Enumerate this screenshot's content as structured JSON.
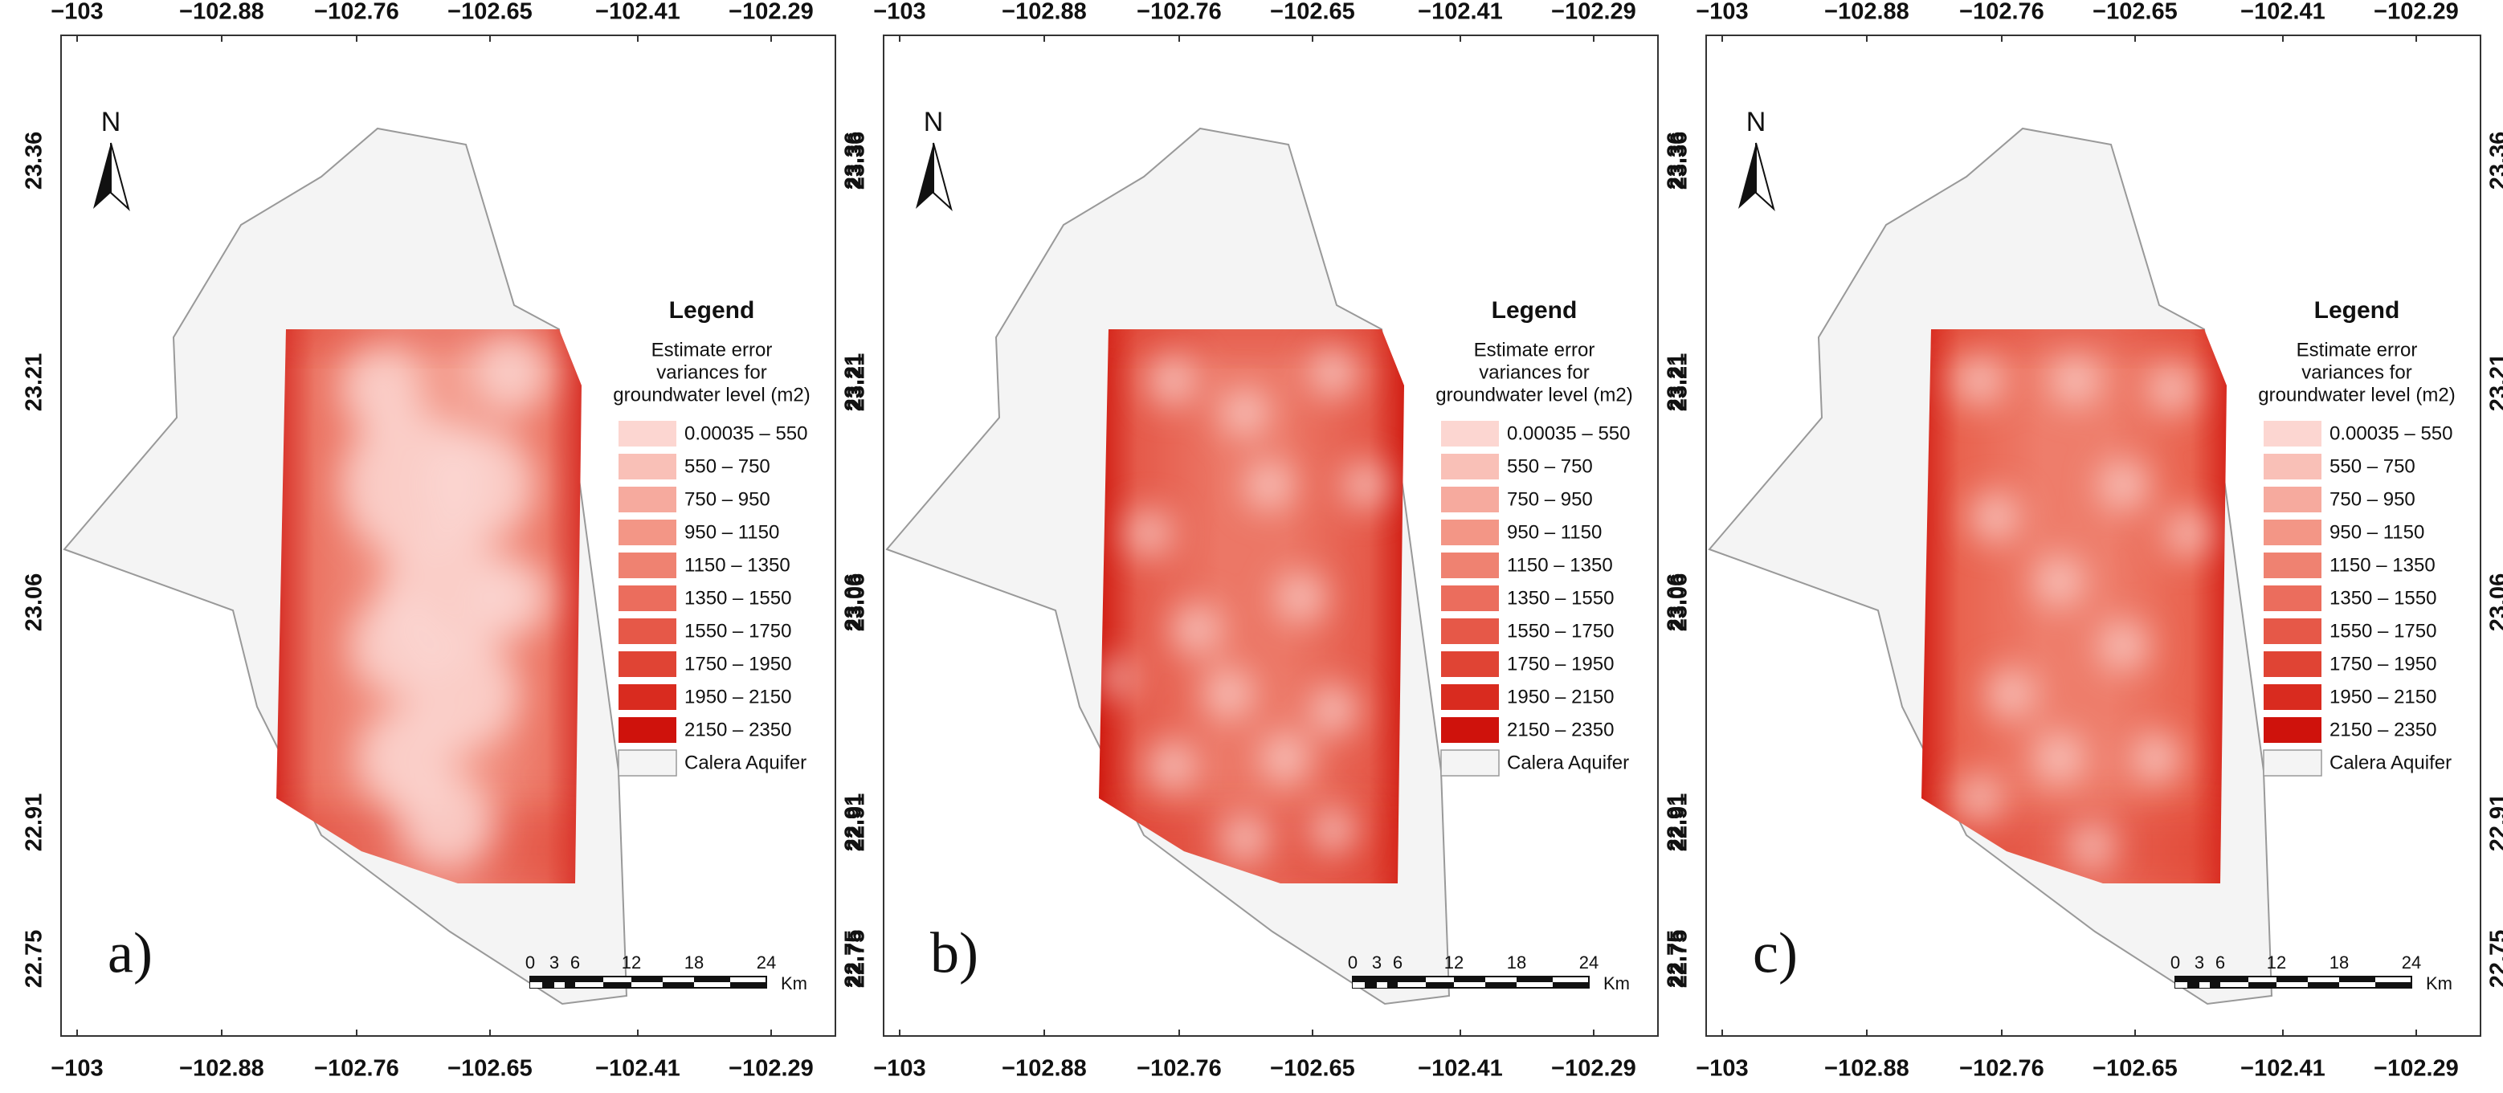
{
  "axes": {
    "top": [
      "−103",
      "−102.88",
      "−102.76",
      "−102.65",
      "−102.41",
      "−102.29"
    ],
    "bottom": [
      "−103",
      "−102.88",
      "−102.76",
      "−102.65",
      "−102.41",
      "−102.29"
    ],
    "left": [
      "23.36",
      "23.21",
      "23.06",
      "22.91",
      "22.75"
    ],
    "right": [
      "23.36",
      "23.21",
      "23.06",
      "22.91",
      "22.75"
    ]
  },
  "north": "N",
  "legend": {
    "title": "Legend",
    "subtitle": [
      "Estimate error",
      "variances for",
      "groundwater level (m2)"
    ],
    "items": [
      {
        "label": "0.00035 – 550",
        "color": "#fcd6d1"
      },
      {
        "label": "550 – 750",
        "color": "#f9c0b7"
      },
      {
        "label": "750 – 950",
        "color": "#f6aa9e"
      },
      {
        "label": "950 – 1150",
        "color": "#f39686"
      },
      {
        "label": "1150 – 1350",
        "color": "#ef8271"
      },
      {
        "label": "1350 – 1550",
        "color": "#eb6d5d"
      },
      {
        "label": "1550 – 1750",
        "color": "#e65848"
      },
      {
        "label": "1750 – 1950",
        "color": "#e04434"
      },
      {
        "label": "1950 – 2150",
        "color": "#d92b1f"
      },
      {
        "label": "2150 – 2350",
        "color": "#cf120c"
      },
      {
        "label": "Calera Aquifer",
        "color": "#f4f4f4"
      }
    ]
  },
  "scale_bar": {
    "labels": [
      "0",
      "3",
      "6",
      "12",
      "18",
      "24"
    ],
    "unit": "Km"
  },
  "panels": [
    {
      "label": "a)"
    },
    {
      "label": "b)"
    },
    {
      "label": "c)"
    }
  ]
}
